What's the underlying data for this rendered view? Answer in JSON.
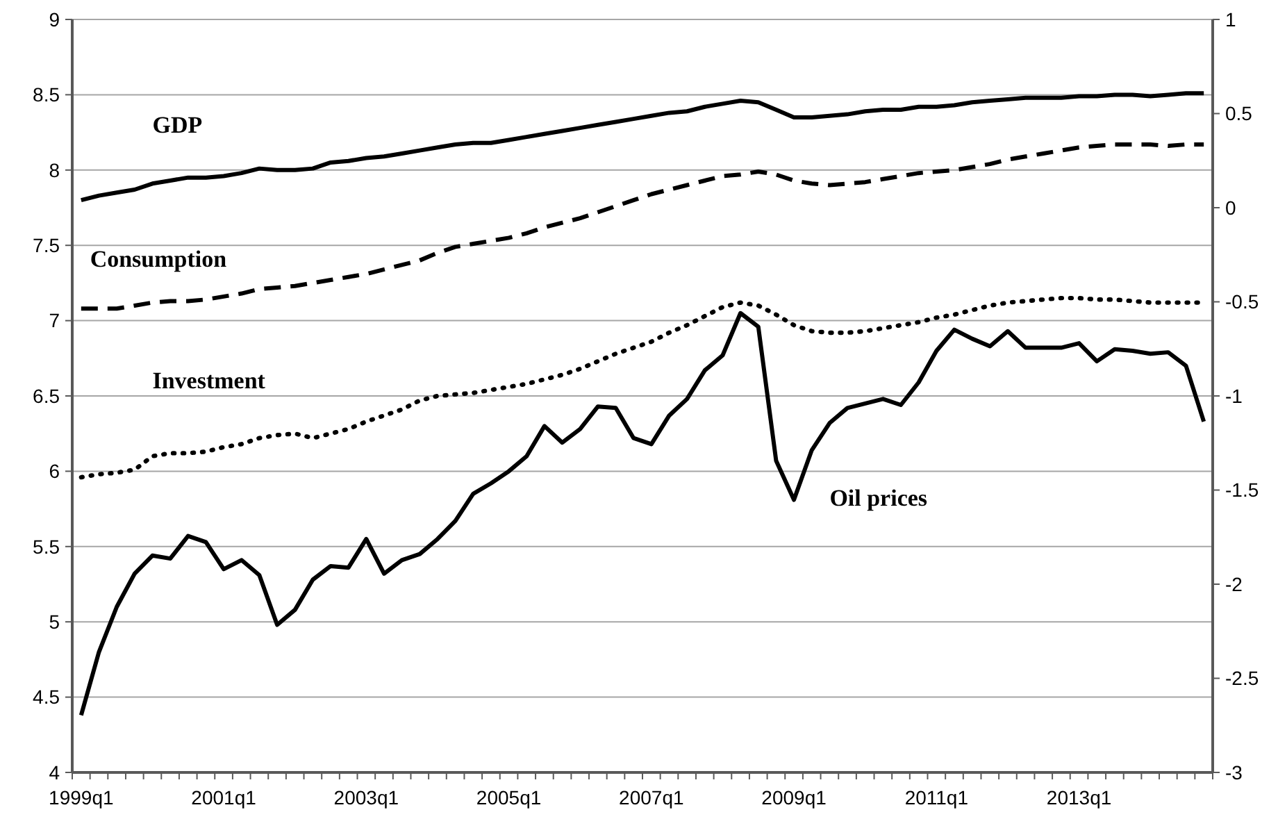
{
  "chart_data": {
    "type": "line",
    "categories": [
      "1999q1",
      null,
      null,
      null,
      null,
      null,
      null,
      null,
      "2001q1",
      null,
      null,
      null,
      null,
      null,
      null,
      null,
      "2003q1",
      null,
      null,
      null,
      null,
      null,
      null,
      null,
      "2005q1",
      null,
      null,
      null,
      null,
      null,
      null,
      null,
      "2007q1",
      null,
      null,
      null,
      null,
      null,
      null,
      null,
      "2009q1",
      null,
      null,
      null,
      null,
      null,
      null,
      null,
      "2011q1",
      null,
      null,
      null,
      null,
      null,
      null,
      null,
      "2013q1",
      null,
      null,
      null,
      null,
      null,
      null,
      null
    ],
    "series": [
      {
        "name": "GDP",
        "color": "#000000",
        "line_style": "solid",
        "values": [
          7.8,
          7.83,
          7.85,
          7.87,
          7.91,
          7.93,
          7.95,
          7.95,
          7.96,
          7.98,
          8.01,
          8.0,
          8.0,
          8.01,
          8.05,
          8.06,
          8.08,
          8.09,
          8.11,
          8.13,
          8.15,
          8.17,
          8.18,
          8.18,
          8.2,
          8.22,
          8.24,
          8.26,
          8.28,
          8.3,
          8.32,
          8.34,
          8.36,
          8.38,
          8.39,
          8.42,
          8.44,
          8.46,
          8.45,
          8.4,
          8.35,
          8.35,
          8.36,
          8.37,
          8.39,
          8.4,
          8.4,
          8.42,
          8.42,
          8.43,
          8.45,
          8.46,
          8.47,
          8.48,
          8.48,
          8.48,
          8.49,
          8.49,
          8.5,
          8.5,
          8.49,
          8.5,
          8.51,
          8.51
        ]
      },
      {
        "name": "Consumption",
        "color": "#000000",
        "line_style": "dashed",
        "values": [
          7.08,
          7.08,
          7.08,
          7.1,
          7.12,
          7.13,
          7.13,
          7.14,
          7.16,
          7.18,
          7.21,
          7.22,
          7.23,
          7.25,
          7.27,
          7.29,
          7.31,
          7.34,
          7.37,
          7.4,
          7.45,
          7.49,
          7.51,
          7.53,
          7.55,
          7.58,
          7.62,
          7.65,
          7.68,
          7.72,
          7.76,
          7.8,
          7.84,
          7.87,
          7.9,
          7.93,
          7.96,
          7.97,
          7.99,
          7.97,
          7.93,
          7.91,
          7.9,
          7.91,
          7.92,
          7.94,
          7.96,
          7.98,
          7.99,
          8.0,
          8.02,
          8.04,
          8.07,
          8.09,
          8.11,
          8.13,
          8.15,
          8.16,
          8.17,
          8.17,
          8.17,
          8.16,
          8.17,
          8.17
        ]
      },
      {
        "name": "Investment",
        "color": "#000000",
        "line_style": "dotted",
        "values": [
          5.96,
          5.98,
          5.99,
          6.01,
          6.1,
          6.12,
          6.12,
          6.13,
          6.16,
          6.18,
          6.22,
          6.24,
          6.25,
          6.22,
          6.25,
          6.28,
          6.33,
          6.37,
          6.41,
          6.47,
          6.5,
          6.51,
          6.52,
          6.54,
          6.56,
          6.58,
          6.61,
          6.64,
          6.68,
          6.73,
          6.78,
          6.82,
          6.86,
          6.92,
          6.97,
          7.03,
          7.09,
          7.12,
          7.1,
          7.04,
          6.97,
          6.93,
          6.92,
          6.92,
          6.93,
          6.95,
          6.97,
          6.99,
          7.02,
          7.04,
          7.07,
          7.1,
          7.12,
          7.13,
          7.14,
          7.15,
          7.15,
          7.14,
          7.14,
          7.13,
          7.12,
          7.12,
          7.12,
          7.12
        ]
      },
      {
        "name": "Oil prices",
        "color": "#000000",
        "line_style": "solid",
        "values": [
          4.38,
          4.8,
          5.1,
          5.32,
          5.44,
          5.42,
          5.57,
          5.53,
          5.35,
          5.41,
          5.31,
          4.98,
          5.08,
          5.28,
          5.37,
          5.36,
          5.55,
          5.32,
          5.41,
          5.45,
          5.55,
          5.67,
          5.85,
          5.92,
          6.0,
          6.1,
          6.3,
          6.19,
          6.28,
          6.43,
          6.42,
          6.22,
          6.18,
          6.37,
          6.48,
          6.67,
          6.77,
          7.05,
          6.96,
          6.07,
          5.81,
          6.14,
          6.32,
          6.42,
          6.45,
          6.48,
          6.44,
          6.59,
          6.8,
          6.94,
          6.88,
          6.83,
          6.93,
          6.82,
          6.82,
          6.82,
          6.85,
          6.73,
          6.81,
          6.8,
          6.78,
          6.79,
          6.7,
          6.33
        ]
      }
    ],
    "ylim": [
      4,
      9
    ],
    "yticks": [
      4,
      4.5,
      5,
      5.5,
      6,
      6.5,
      7,
      7.5,
      8,
      8.5,
      9
    ],
    "y2lim": [
      -3,
      1
    ],
    "y2ticks": [
      -3,
      -2.5,
      -2,
      -1.5,
      -1,
      -0.5,
      0,
      0.5,
      1
    ],
    "grid": "y",
    "legend": false
  }
}
